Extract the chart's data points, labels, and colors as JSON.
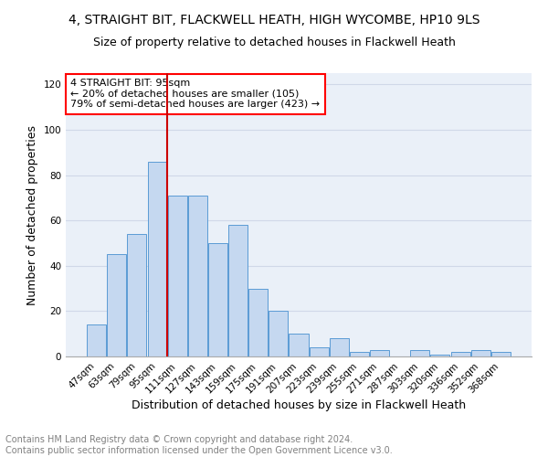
{
  "title": "4, STRAIGHT BIT, FLACKWELL HEATH, HIGH WYCOMBE, HP10 9LS",
  "subtitle": "Size of property relative to detached houses in Flackwell Heath",
  "xlabel": "Distribution of detached houses by size in Flackwell Heath",
  "ylabel": "Number of detached properties",
  "categories": [
    "47sqm",
    "63sqm",
    "79sqm",
    "95sqm",
    "111sqm",
    "127sqm",
    "143sqm",
    "159sqm",
    "175sqm",
    "191sqm",
    "207sqm",
    "223sqm",
    "239sqm",
    "255sqm",
    "271sqm",
    "287sqm",
    "303sqm",
    "320sqm",
    "336sqm",
    "352sqm",
    "368sqm"
  ],
  "values": [
    14,
    45,
    54,
    86,
    71,
    71,
    50,
    58,
    30,
    20,
    10,
    4,
    8,
    2,
    3,
    0,
    3,
    1,
    2,
    3,
    2
  ],
  "bar_color": "#c5d8f0",
  "bar_edge_color": "#5b9bd5",
  "annotation_text": "4 STRAIGHT BIT: 95sqm\n← 20% of detached houses are smaller (105)\n79% of semi-detached houses are larger (423) →",
  "annotation_box_color": "white",
  "annotation_box_edge": "red",
  "red_line_color": "#cc0000",
  "red_line_index": 3,
  "ylim": [
    0,
    125
  ],
  "yticks": [
    0,
    20,
    40,
    60,
    80,
    100,
    120
  ],
  "grid_color": "#d0d8e8",
  "background_color": "#eaf0f8",
  "footer_line1": "Contains HM Land Registry data © Crown copyright and database right 2024.",
  "footer_line2": "Contains public sector information licensed under the Open Government Licence v3.0.",
  "title_fontsize": 10,
  "subtitle_fontsize": 9,
  "xlabel_fontsize": 9,
  "ylabel_fontsize": 9,
  "tick_fontsize": 7.5,
  "annotation_fontsize": 8,
  "footer_fontsize": 7
}
